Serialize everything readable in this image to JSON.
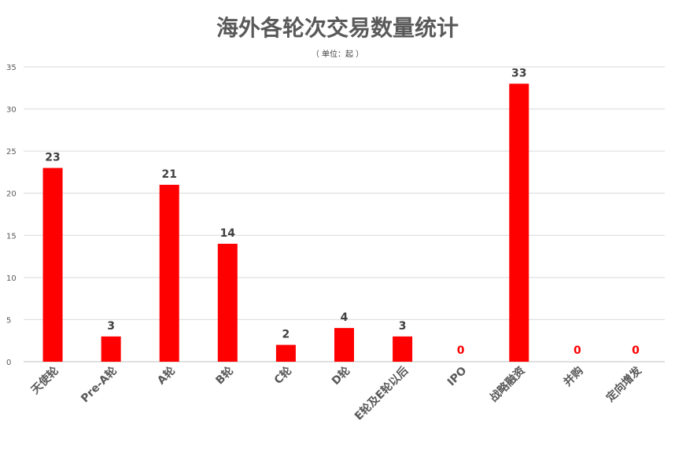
{
  "chart_data": {
    "type": "bar",
    "title": "海外各轮次交易数量统计",
    "subtitle": "（ 单位：起 ）",
    "categories": [
      "天使轮",
      "Pre-A轮",
      "A轮",
      "B轮",
      "C轮",
      "D轮",
      "E轮及E轮以后",
      "IPO",
      "战略融资",
      "并购",
      "定向增发"
    ],
    "values": [
      23,
      3,
      21,
      14,
      2,
      4,
      3,
      0,
      33,
      0,
      0
    ],
    "value_labels": [
      "23",
      "3",
      "21",
      "14",
      "2",
      "4",
      "3",
      "0",
      "33",
      "0",
      "0"
    ],
    "y_ticks": [
      "0",
      "5",
      "10",
      "15",
      "20",
      "25",
      "30",
      "35"
    ],
    "ylim": [
      0,
      35
    ],
    "grid": true,
    "legend": "none",
    "colors": {
      "bar": "#ff0000",
      "zero_label": "#ff0000",
      "label": "#404040",
      "grid": "#d9d9d9",
      "axis_text": "#595959"
    }
  }
}
